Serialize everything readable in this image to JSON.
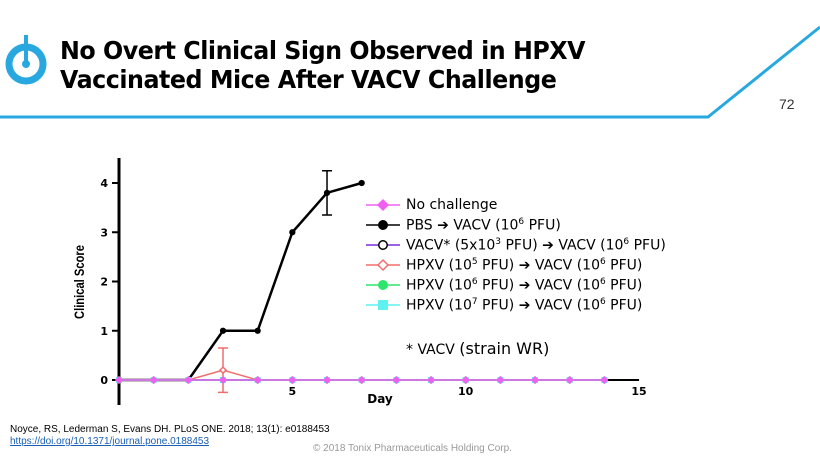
{
  "header": {
    "title_line1": "No Overt Clinical Sign Observed in HPXV",
    "title_line2": "Vaccinated Mice After VACV Challenge",
    "page_number": "72",
    "accent": "#29a8e0"
  },
  "chart_data": {
    "type": "line",
    "xlabel": "Day",
    "ylabel": "Clinical Score",
    "xlim": [
      0,
      15
    ],
    "ylim": [
      -0.5,
      4.5
    ],
    "xticks": [
      5,
      10,
      15
    ],
    "yticks": [
      0,
      1,
      2,
      3,
      4
    ],
    "series": [
      {
        "name": "PBS → VACV (10^6 PFU)",
        "color": "#000000",
        "marker": "circle-filled",
        "x": [
          0,
          1,
          2,
          3,
          4,
          5,
          6,
          7
        ],
        "y": [
          0,
          0,
          0,
          1,
          1,
          3,
          3.8,
          4
        ],
        "err": [
          0,
          0,
          0,
          0,
          0,
          0,
          0.45,
          0
        ]
      },
      {
        "name": "VACV* (5x10^3 PFU) → VACV (10^6 PFU)",
        "color": "#7b2be0",
        "marker": "circle-open",
        "x": [
          0,
          1,
          2,
          3,
          4,
          5,
          6,
          7,
          8,
          9,
          10,
          11,
          12,
          13,
          14
        ],
        "y": [
          0,
          0,
          0,
          0,
          0,
          0,
          0,
          0,
          0,
          0,
          0,
          0,
          0,
          0,
          0
        ]
      },
      {
        "name": "HPXV (10^5 PFU) → VACV (10^6 PFU)",
        "color": "#f26d6d",
        "marker": "diamond-open",
        "x": [
          0,
          1,
          2,
          3,
          4,
          5,
          6,
          7,
          8,
          9,
          10,
          11,
          12,
          13,
          14
        ],
        "y": [
          0,
          0,
          0,
          0.2,
          0,
          0,
          0,
          0,
          0,
          0,
          0,
          0,
          0,
          0,
          0
        ],
        "err": [
          0,
          0,
          0,
          0.45,
          0,
          0,
          0,
          0,
          0,
          0,
          0,
          0,
          0,
          0,
          0
        ]
      },
      {
        "name": "HPXV (10^6 PFU) → VACV (10^6 PFU)",
        "color": "#2ee56b",
        "marker": "circle-filled",
        "x": [
          0,
          1,
          2,
          3,
          4,
          5,
          6,
          7,
          8,
          9,
          10,
          11,
          12,
          13,
          14
        ],
        "y": [
          0,
          0,
          0,
          0,
          0,
          0,
          0,
          0,
          0,
          0,
          0,
          0,
          0,
          0,
          0
        ]
      },
      {
        "name": "HPXV (10^7 PFU) → VACV (10^6 PFU)",
        "color": "#5ff0f0",
        "marker": "square",
        "x": [
          0,
          1,
          2,
          3,
          4,
          5,
          6,
          7,
          8,
          9,
          10,
          11,
          12,
          13,
          14
        ],
        "y": [
          0,
          0,
          0,
          0,
          0,
          0,
          0,
          0,
          0,
          0,
          0,
          0,
          0,
          0,
          0
        ]
      },
      {
        "name": "No challenge",
        "color": "#f060f0",
        "marker": "diamond",
        "x": [
          0,
          1,
          2,
          3,
          4,
          5,
          6,
          7,
          8,
          9,
          10,
          11,
          12,
          13,
          14
        ],
        "y": [
          0,
          0,
          0,
          0,
          0,
          0,
          0,
          0,
          0,
          0,
          0,
          0,
          0,
          0,
          0
        ]
      }
    ],
    "legend": {
      "placement": "right",
      "items": [
        {
          "pre": "No challenge",
          "color": "#f060f0",
          "marker": "diamond"
        },
        {
          "pre": "PBS ➔  VACV (10",
          "sup1": "6",
          "post": " PFU)",
          "color": "#000000",
          "marker": "circle-filled"
        },
        {
          "pre": "VACV*  (5x10",
          "sup1": "3",
          "mid": " PFU) ➔ VACV (10",
          "sup2": "6",
          "post": " PFU)",
          "color": "#7b2be0",
          "marker": "circle-open"
        },
        {
          "pre": "HPXV (10",
          "sup1": "5",
          "mid": " PFU) ➔ VACV (10",
          "sup2": "6",
          "post": " PFU)",
          "color": "#f26d6d",
          "marker": "diamond-open"
        },
        {
          "pre": "HPXV (10",
          "sup1": "6",
          "mid": " PFU) ➔ VACV (10",
          "sup2": "6",
          "post": " PFU)",
          "color": "#2ee56b",
          "marker": "circle-filled"
        },
        {
          "pre": "HPXV (10",
          "sup1": "7",
          "mid": " PFU) ➔ VACV (10",
          "sup2": "6",
          "post": " PFU)",
          "color": "#5ff0f0",
          "marker": "square"
        }
      ],
      "note_prefix": "* VACV ",
      "note_main": "(strain WR)"
    }
  },
  "footer": {
    "citation": "Noyce, RS, Lederman S, Evans DH. PLoS ONE. 2018; 13(1): e0188453",
    "link": "https://doi.org/10.1371/journal.pone.0188453",
    "copyright": "© 2018 Tonix Pharmaceuticals Holding Corp."
  }
}
